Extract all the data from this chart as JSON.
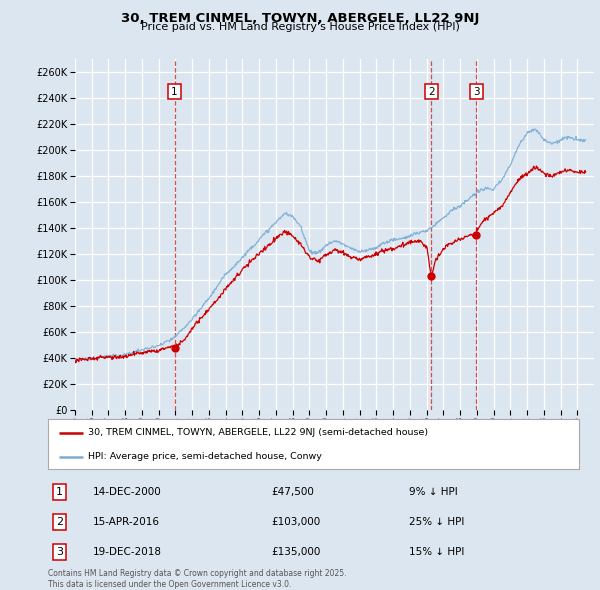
{
  "title": "30, TREM CINMEL, TOWYN, ABERGELE, LL22 9NJ",
  "subtitle": "Price paid vs. HM Land Registry's House Price Index (HPI)",
  "ylim": [
    0,
    270000
  ],
  "yticks": [
    0,
    20000,
    40000,
    60000,
    80000,
    100000,
    120000,
    140000,
    160000,
    180000,
    200000,
    220000,
    240000,
    260000
  ],
  "background_color": "#dce6f0",
  "hpi_line_color": "#7aadd4",
  "price_line_color": "#cc0000",
  "dashed_line_color": "#cc3333",
  "sales": [
    {
      "date_num": 2000.95,
      "price": 47500,
      "label": "1"
    },
    {
      "date_num": 2016.29,
      "price": 103000,
      "label": "2"
    },
    {
      "date_num": 2018.97,
      "price": 135000,
      "label": "3"
    }
  ],
  "sale_labels_info": [
    {
      "label": "1",
      "date": "14-DEC-2000",
      "price": "£47,500",
      "pct": "9% ↓ HPI"
    },
    {
      "label": "2",
      "date": "15-APR-2016",
      "price": "£103,000",
      "pct": "25% ↓ HPI"
    },
    {
      "label": "3",
      "date": "19-DEC-2018",
      "price": "£135,000",
      "pct": "15% ↓ HPI"
    }
  ],
  "legend_entries": [
    "30, TREM CINMEL, TOWYN, ABERGELE, LL22 9NJ (semi-detached house)",
    "HPI: Average price, semi-detached house, Conwy"
  ],
  "footer": "Contains HM Land Registry data © Crown copyright and database right 2025.\nThis data is licensed under the Open Government Licence v3.0.",
  "xmin": 1995,
  "xmax": 2026,
  "xticks": [
    1995,
    1996,
    1997,
    1998,
    1999,
    2000,
    2001,
    2002,
    2003,
    2004,
    2005,
    2006,
    2007,
    2008,
    2009,
    2010,
    2011,
    2012,
    2013,
    2014,
    2015,
    2016,
    2017,
    2018,
    2019,
    2020,
    2021,
    2022,
    2023,
    2024,
    2025
  ]
}
